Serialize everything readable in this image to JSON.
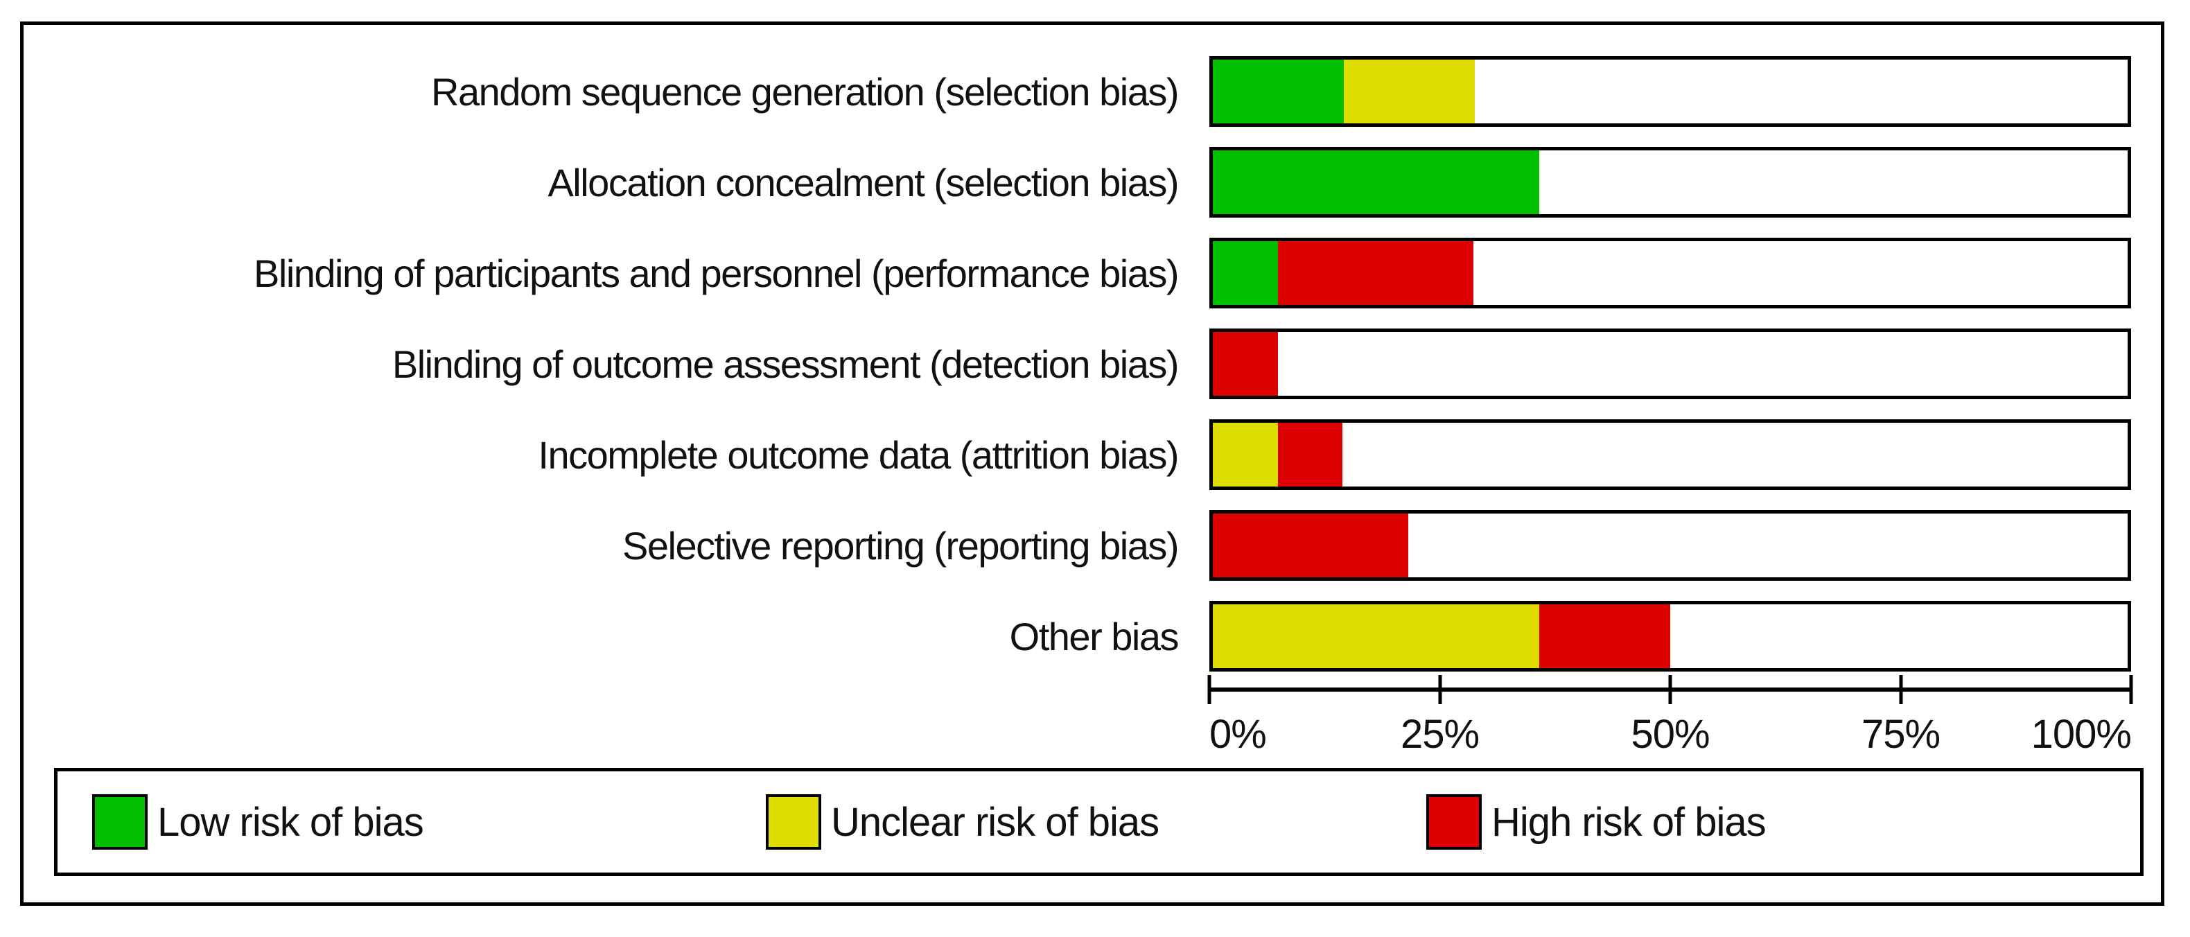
{
  "chart_data": {
    "type": "bar",
    "orientation": "horizontal",
    "stacked": true,
    "title": "",
    "xlabel": "",
    "ylabel": "",
    "grid": false,
    "categories": [
      "Random sequence generation (selection bias)",
      "Allocation concealment (selection bias)",
      "Blinding of participants and personnel (performance bias)",
      "Blinding of outcome assessment (detection bias)",
      "Incomplete outcome data (attrition bias)",
      "Selective reporting (reporting bias)",
      "Other bias"
    ],
    "series": [
      {
        "key": "low",
        "name": "Low risk of bias",
        "color": "#00bf00",
        "values": [
          14.3,
          35.7,
          7.1,
          0,
          0,
          0,
          0
        ]
      },
      {
        "key": "unclear",
        "name": "Unclear risk of bias",
        "color": "#dedc00",
        "values": [
          14.3,
          0,
          0,
          0,
          7.1,
          0,
          35.7
        ]
      },
      {
        "key": "high",
        "name": "High risk of bias",
        "color": "#dd0000",
        "values": [
          0,
          0,
          21.4,
          7.1,
          7.1,
          21.4,
          14.3
        ]
      }
    ],
    "x_axis": {
      "range": [
        0,
        100
      ],
      "tick_labels": [
        "0%",
        "25%",
        "50%",
        "75%",
        "100%"
      ]
    },
    "legend": [
      {
        "label": "Low risk of bias",
        "color": "#00bf00"
      },
      {
        "label": "Unclear risk of bias",
        "color": "#dedc00"
      },
      {
        "label": "High risk of bias",
        "color": "#dd0000"
      }
    ],
    "legend_position": "bottom"
  }
}
